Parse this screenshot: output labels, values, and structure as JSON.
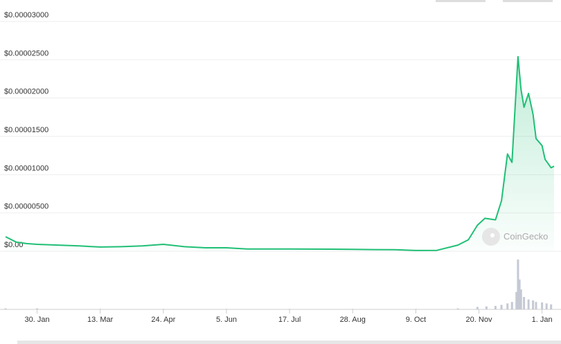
{
  "chart_data": {
    "type": "line",
    "x": [
      0,
      7,
      14,
      21,
      35,
      49,
      63,
      77,
      91,
      105,
      119,
      133,
      147,
      161,
      175,
      189,
      203,
      217,
      231,
      245,
      259,
      273,
      287,
      301,
      308,
      314,
      319,
      326,
      330,
      334,
      337,
      341,
      343,
      345,
      348,
      351,
      353,
      357,
      359,
      363,
      365
    ],
    "series": [
      {
        "name": "Price",
        "color": "#1fbf75",
        "values": [
          1.9e-06,
          1.2e-06,
          1e-06,
          9e-07,
          8e-07,
          7e-07,
          5.5e-07,
          6e-07,
          7e-07,
          9e-07,
          6e-07,
          4.5e-07,
          4.5e-07,
          3e-07,
          3e-07,
          3e-07,
          2.8e-07,
          2.7e-07,
          2.5e-07,
          2.2e-07,
          2e-07,
          1e-07,
          1.2e-07,
          8e-07,
          1.5e-06,
          3.4e-06,
          4.3e-06,
          4.1e-06,
          6.6e-06,
          1.27e-05,
          1.16e-05,
          2.54e-05,
          2.11e-05,
          1.88e-05,
          2.06e-05,
          1.79e-05,
          1.47e-05,
          1.38e-05,
          1.2e-05,
          1.09e-05,
          1.11e-05
        ]
      }
    ],
    "volume": {
      "x": [
        0,
        21,
        63,
        105,
        147,
        189,
        231,
        273,
        301,
        314,
        320,
        326,
        330,
        334,
        337,
        340,
        341,
        342,
        343,
        345,
        348,
        351,
        353,
        357,
        360,
        363
      ],
      "values": [
        2,
        2,
        1,
        1,
        1,
        1,
        1,
        1,
        2,
        5,
        6,
        7,
        9,
        12,
        15,
        35,
        100,
        60,
        40,
        25,
        20,
        18,
        15,
        14,
        12,
        10
      ]
    },
    "xlim": [
      0,
      365
    ],
    "xticks": [
      {
        "value": 21,
        "label": "30. Jan"
      },
      {
        "value": 63,
        "label": "13. Mar"
      },
      {
        "value": 105,
        "label": "24. Apr"
      },
      {
        "value": 147,
        "label": "5. Jun"
      },
      {
        "value": 189,
        "label": "17. Jul"
      },
      {
        "value": 231,
        "label": "28. Aug"
      },
      {
        "value": 273,
        "label": "9. Oct"
      },
      {
        "value": 315,
        "label": "20. Nov"
      },
      {
        "value": 357,
        "label": "1. Jan"
      }
    ],
    "ylim": [
      0,
      3e-05
    ],
    "yticks": [
      {
        "value": 0,
        "label": "$0.00"
      },
      {
        "value": 5e-06,
        "label": "$0.00000500"
      },
      {
        "value": 1e-05,
        "label": "$0.00001000"
      },
      {
        "value": 1.5e-05,
        "label": "$0.00001500"
      },
      {
        "value": 2e-05,
        "label": "$0.00002000"
      },
      {
        "value": 2.5e-05,
        "label": "$0.00002500"
      },
      {
        "value": 3e-05,
        "label": "$0.00003000"
      }
    ],
    "grid": true,
    "watermark": "CoinGecko"
  }
}
